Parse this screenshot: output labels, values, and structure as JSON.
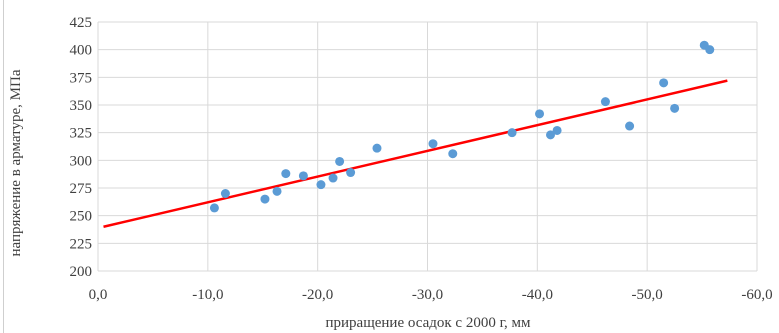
{
  "chart_data": {
    "type": "scatter",
    "title": "",
    "xlabel": "приращение осадок с 2000 г, мм",
    "ylabel": "напряжение в арматуре, МПа",
    "xlim": [
      0,
      -60
    ],
    "ylim": [
      200,
      425
    ],
    "grid": true,
    "legend": "none",
    "x_ticks": [
      0,
      -10,
      -20,
      -30,
      -40,
      -50,
      -60
    ],
    "x_tick_labels": [
      "0,0",
      "-10,0",
      "-20,0",
      "-30,0",
      "-40,0",
      "-50,0",
      "-60,0"
    ],
    "y_ticks": [
      200,
      225,
      250,
      275,
      300,
      325,
      350,
      375,
      400,
      425
    ],
    "y_tick_labels": [
      "200",
      "225",
      "250",
      "275",
      "300",
      "325",
      "350",
      "375",
      "400",
      "425"
    ],
    "series": [
      {
        "marker_color": "#5b9bd5",
        "points": [
          [
            -10.6,
            257
          ],
          [
            -11.6,
            270
          ],
          [
            -15.2,
            265
          ],
          [
            -16.3,
            272
          ],
          [
            -17.1,
            288
          ],
          [
            -18.7,
            286
          ],
          [
            -20.3,
            278
          ],
          [
            -21.4,
            284
          ],
          [
            -22.0,
            299
          ],
          [
            -23.0,
            289
          ],
          [
            -25.4,
            311
          ],
          [
            -30.5,
            315
          ],
          [
            -32.3,
            306
          ],
          [
            -37.7,
            325
          ],
          [
            -40.2,
            342
          ],
          [
            -41.2,
            323
          ],
          [
            -41.8,
            327
          ],
          [
            -46.2,
            353
          ],
          [
            -48.4,
            331
          ],
          [
            -51.5,
            370
          ],
          [
            -52.5,
            347
          ],
          [
            -55.2,
            404
          ],
          [
            -55.7,
            400
          ]
        ]
      }
    ],
    "trendline": {
      "type": "linear",
      "color": "#ff0000",
      "x": [
        -0.5,
        -57.3
      ],
      "y": [
        240,
        372
      ]
    },
    "colors": {
      "gridline": "#d9d9d9",
      "axis_text": "#404040"
    }
  }
}
